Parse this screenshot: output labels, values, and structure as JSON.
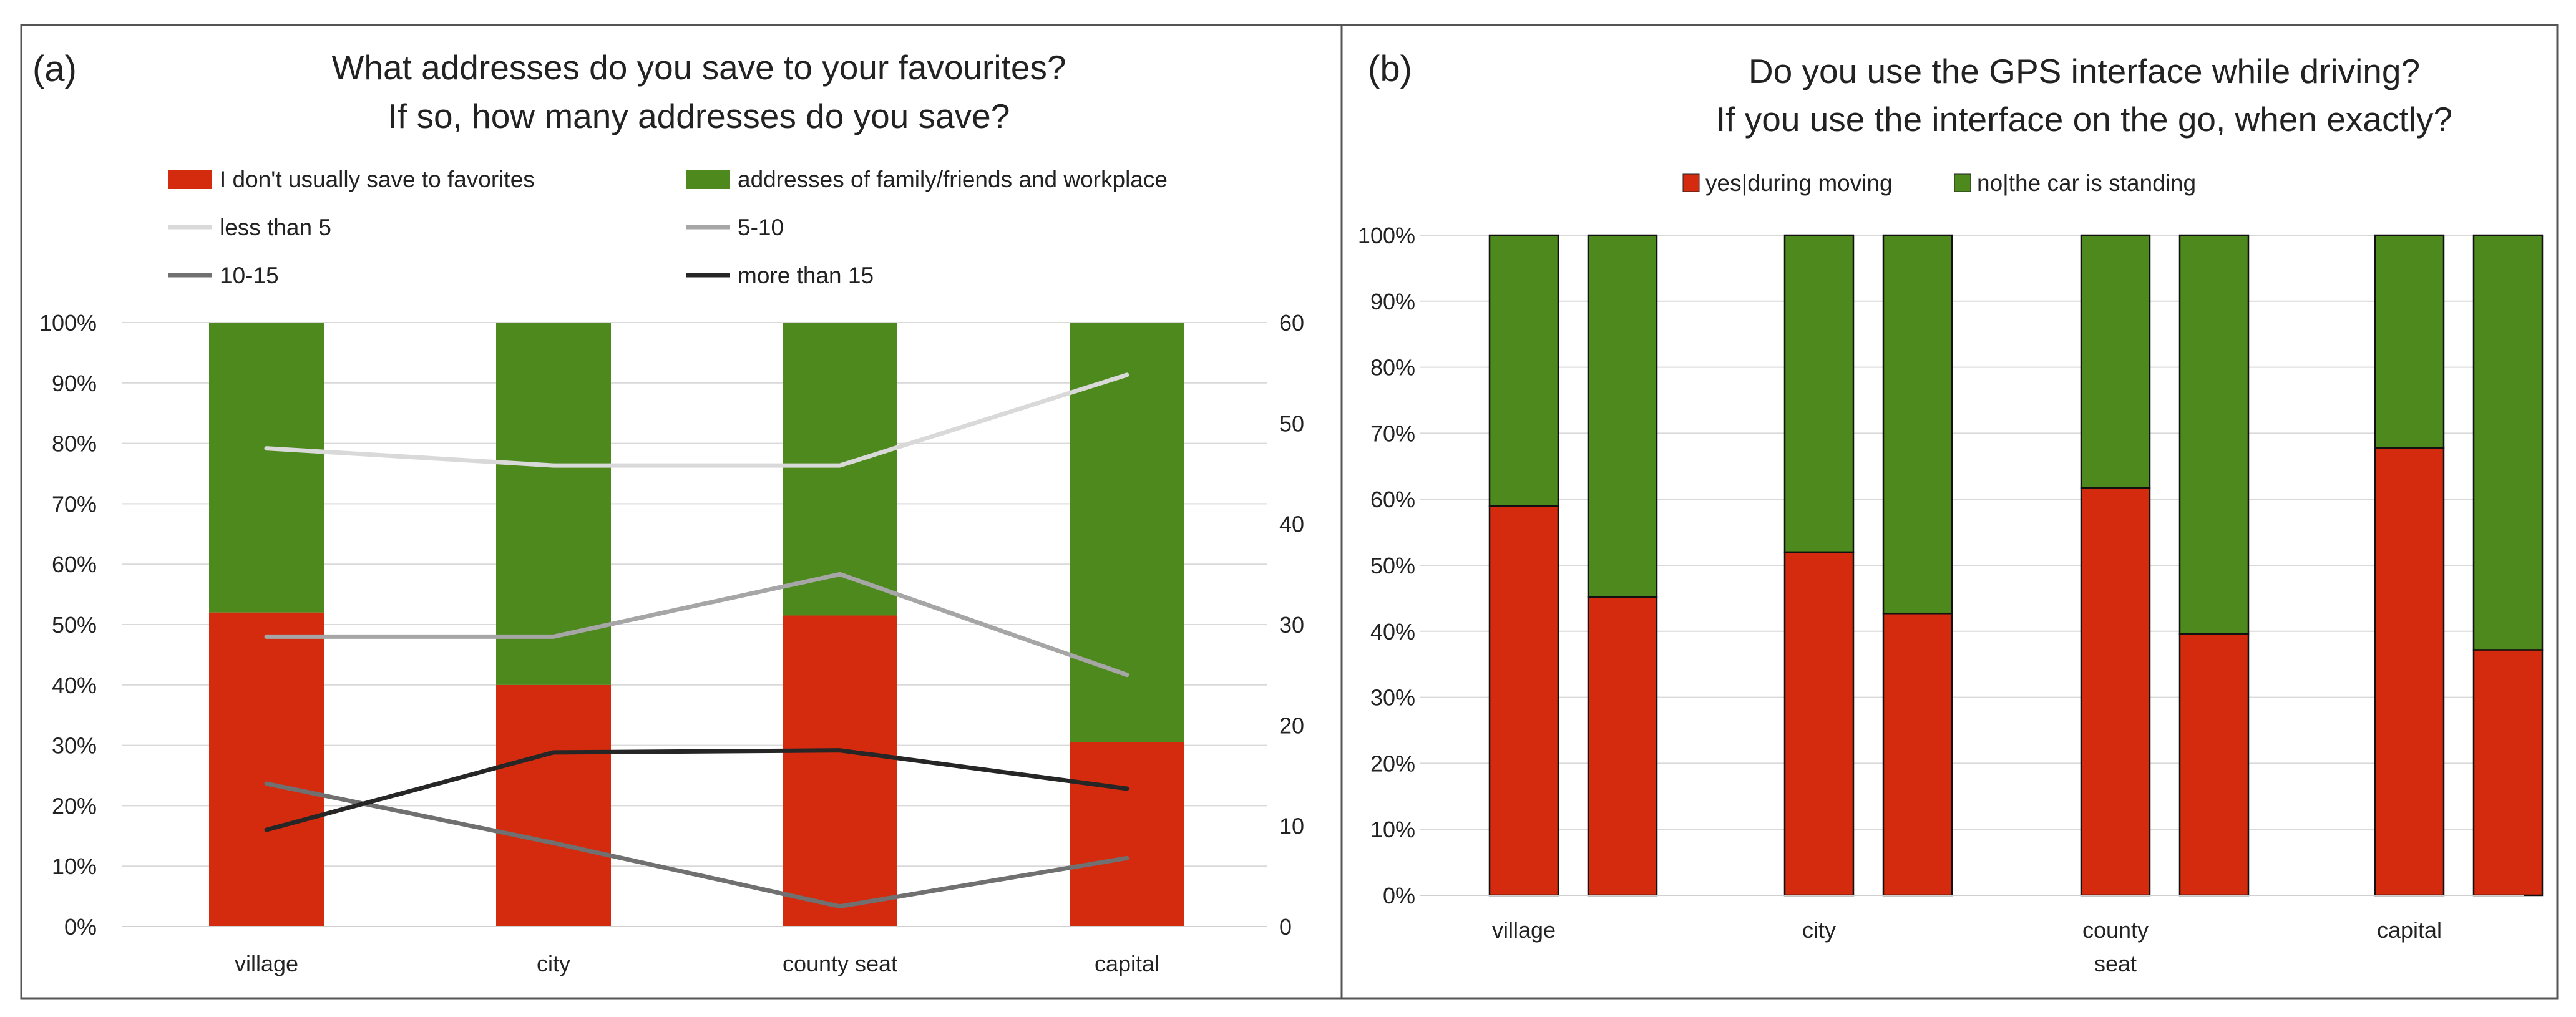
{
  "colors": {
    "red": "#d42a0e",
    "green": "#4e891d",
    "line_less5": "#d9d9d9",
    "line_5_10": "#a6a6a6",
    "line_10_15": "#707070",
    "line_more15": "#262626"
  },
  "chart_data": [
    {
      "panel": "(a)",
      "type": "bar",
      "stacked": true,
      "title": [
        "What addresses do you save to your favourites?",
        "If so, how many addresses do you save?"
      ],
      "categories": [
        "village",
        "city",
        "county seat",
        "capital"
      ],
      "y_ticks": [
        "0%",
        "10%",
        "20%",
        "30%",
        "40%",
        "50%",
        "60%",
        "70%",
        "80%",
        "90%",
        "100%"
      ],
      "y2_ticks": [
        "0",
        "10",
        "20",
        "30",
        "40",
        "50",
        "60"
      ],
      "ylim": [
        0,
        100
      ],
      "y2lim": [
        0,
        60
      ],
      "series": [
        {
          "name": "I don't usually save to favorites",
          "kind": "bar",
          "color": "red",
          "values": [
            52,
            40,
            51.5,
            30.5
          ]
        },
        {
          "name": "addresses of family/friends and workplace",
          "kind": "bar",
          "color": "green",
          "values": [
            48,
            60,
            48.5,
            69.5
          ]
        },
        {
          "name": "less than 5",
          "kind": "line",
          "axis": "right",
          "color": "line_less5",
          "values": [
            47.5,
            45.8,
            45.8,
            54.8
          ]
        },
        {
          "name": "5-10",
          "kind": "line",
          "axis": "right",
          "color": "line_5_10",
          "values": [
            28.8,
            28.8,
            35,
            25
          ]
        },
        {
          "name": "10-15",
          "kind": "line",
          "axis": "right",
          "color": "line_10_15",
          "values": [
            14.2,
            8.3,
            2,
            6.8
          ]
        },
        {
          "name": "more than 15",
          "kind": "line",
          "axis": "right",
          "color": "line_more15",
          "values": [
            9.6,
            17.3,
            17.5,
            13.7
          ]
        }
      ]
    },
    {
      "panel": "(b)",
      "type": "bar",
      "stacked": true,
      "title": [
        "Do you use the GPS interface while driving?",
        "If you use the interface on the go, when exactly?"
      ],
      "categories": [
        "village",
        "city",
        "county\nseat",
        "capital"
      ],
      "bars_per_category": 2,
      "y_ticks": [
        "0%",
        "10%",
        "20%",
        "30%",
        "40%",
        "50%",
        "60%",
        "70%",
        "80%",
        "90%",
        "100%"
      ],
      "ylim": [
        0,
        100
      ],
      "series": [
        {
          "name": "yes|during moving",
          "color": "red",
          "values": [
            [
              59,
              45.2
            ],
            [
              52,
              42.7
            ],
            [
              61.7,
              39.6
            ],
            [
              67.8,
              37.2
            ]
          ]
        },
        {
          "name": "no|the car is standing",
          "color": "green",
          "values": [
            [
              41,
              54.8
            ],
            [
              48,
              57.3
            ],
            [
              38.3,
              60.4
            ],
            [
              32.2,
              62.8
            ]
          ]
        }
      ]
    }
  ]
}
